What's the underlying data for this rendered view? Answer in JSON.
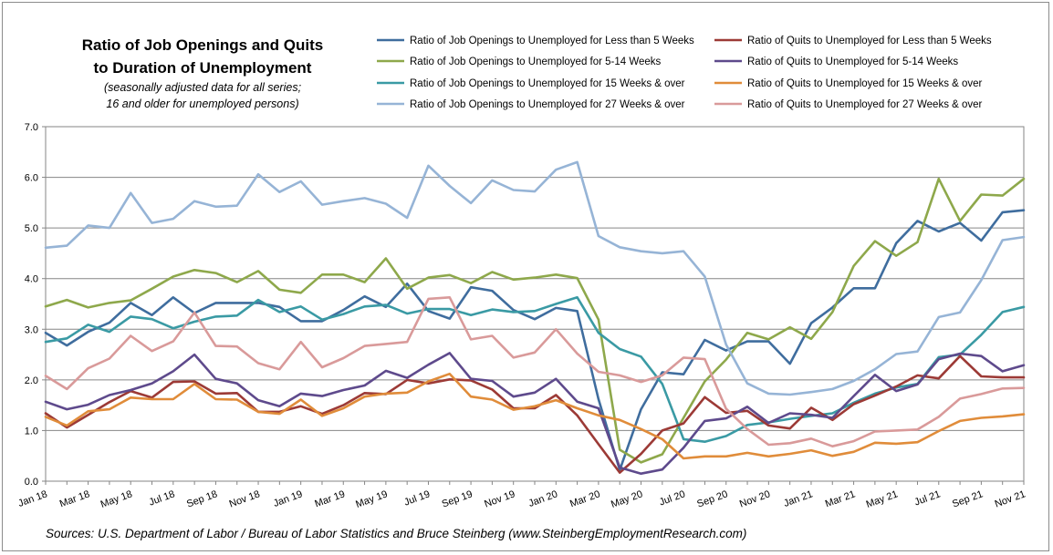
{
  "chart_data": {
    "type": "line",
    "title_lines": [
      "Ratio of Job Openings and Quits",
      "to Duration of Unemployment"
    ],
    "subtitle_lines": [
      "(seasonally adjusted  data for all series;",
      "16 and older for unemployed persons)"
    ],
    "source": "Sources: U.S. Department of Labor / Bureau of Labor Statistics and Bruce Steinberg (www.SteinbergEmploymentResearch.com)",
    "xlabel": "",
    "ylabel": "",
    "ylim": [
      0,
      7
    ],
    "y_ticks": [
      "0.0",
      "1.0",
      "2.0",
      "3.0",
      "4.0",
      "5.0",
      "6.0",
      "7.0"
    ],
    "grid": "horizontal",
    "legend_position": "top-right",
    "x": [
      "Jan 18",
      "Feb 18",
      "Mar 18",
      "Apr 18",
      "May 18",
      "Jun 18",
      "Jul 18",
      "Aug 18",
      "Sep 18",
      "Oct 18",
      "Nov 18",
      "Dec 18",
      "Jan 19",
      "Feb 19",
      "Mar 19",
      "Apr 19",
      "May 19",
      "Jun 19",
      "Jul 19",
      "Aug 19",
      "Sep 19",
      "Oct 19",
      "Nov 19",
      "Dec 19",
      "Jan 20",
      "Feb 20",
      "Mar 20",
      "Apr 20",
      "May 20",
      "Jun 20",
      "Jul 20",
      "Aug 20",
      "Sep 20",
      "Oct 20",
      "Nov 20",
      "Dec 20",
      "Jan 21",
      "Feb 21",
      "Mar 21",
      "Apr 21",
      "May 21",
      "Jun 21",
      "Jul 21",
      "Aug 21",
      "Sep 21",
      "Oct 21",
      "Nov 21"
    ],
    "x_tick_labels": [
      "Jan 18",
      "Mar 18",
      "May 18",
      "Jul 18",
      "Sep 18",
      "Nov 18",
      "Jan 19",
      "Mar 19",
      "May 19",
      "Jul 19",
      "Sep 19",
      "Nov 19",
      "Jan 20",
      "Mar 20",
      "May 20",
      "Jul 20",
      "Sep 20",
      "Nov 20",
      "Jan 21",
      "Mar 21",
      "May 21",
      "Jul 21",
      "Sep 21",
      "Nov 21"
    ],
    "series": [
      {
        "name": "Ratio of Job Openings to Unemployed for Less than 5 Weeks",
        "color": "#3f6d9e",
        "values": [
          2.93,
          2.68,
          2.95,
          3.13,
          3.52,
          3.28,
          3.63,
          3.32,
          3.52,
          3.52,
          3.52,
          3.44,
          3.16,
          3.16,
          3.38,
          3.65,
          3.44,
          3.9,
          3.36,
          3.21,
          3.83,
          3.76,
          3.38,
          3.2,
          3.42,
          3.36,
          1.62,
          0.22,
          1.42,
          2.15,
          2.11,
          2.79,
          2.58,
          2.76,
          2.76,
          2.32,
          3.12,
          3.43,
          3.81,
          3.81,
          4.7,
          5.14,
          4.93,
          5.1,
          4.75,
          5.31,
          5.35
        ]
      },
      {
        "name": "Ratio of Job Openings to Unemployed for 5-14 Weeks",
        "color": "#8ea84b",
        "values": [
          3.45,
          3.58,
          3.43,
          3.52,
          3.57,
          3.8,
          4.04,
          4.17,
          4.11,
          3.93,
          4.15,
          3.78,
          3.72,
          4.08,
          4.08,
          3.93,
          4.4,
          3.8,
          4.02,
          4.07,
          3.91,
          4.13,
          3.98,
          4.02,
          4.08,
          4.01,
          3.19,
          0.62,
          0.37,
          0.53,
          1.25,
          1.97,
          2.4,
          2.93,
          2.8,
          3.04,
          2.81,
          3.34,
          4.25,
          4.74,
          4.45,
          4.72,
          5.97,
          5.14,
          5.66,
          5.64,
          5.97
        ]
      },
      {
        "name": "Ratio of Job Openings to Unemployed for 15 Weeks & over",
        "color": "#3a9aa4",
        "values": [
          2.75,
          2.82,
          3.09,
          2.95,
          3.25,
          3.2,
          3.02,
          3.15,
          3.25,
          3.27,
          3.58,
          3.34,
          3.45,
          3.19,
          3.3,
          3.45,
          3.48,
          3.31,
          3.4,
          3.4,
          3.28,
          3.39,
          3.34,
          3.36,
          3.5,
          3.63,
          2.93,
          2.61,
          2.46,
          1.92,
          0.83,
          0.78,
          0.89,
          1.11,
          1.16,
          1.23,
          1.29,
          1.34,
          1.55,
          1.73,
          1.85,
          1.92,
          2.45,
          2.5,
          2.89,
          3.34,
          3.44
        ]
      },
      {
        "name": "Ratio of Job Openings to Unemployed for 27 Weeks & over",
        "color": "#96b4d6",
        "values": [
          4.61,
          4.65,
          5.05,
          5.0,
          5.69,
          5.1,
          5.18,
          5.53,
          5.42,
          5.44,
          6.06,
          5.71,
          5.92,
          5.46,
          5.53,
          5.59,
          5.48,
          5.2,
          6.23,
          5.83,
          5.49,
          5.94,
          5.75,
          5.72,
          6.15,
          6.3,
          4.84,
          4.62,
          4.54,
          4.5,
          4.54,
          4.04,
          2.7,
          1.93,
          1.73,
          1.71,
          1.76,
          1.82,
          1.98,
          2.21,
          2.51,
          2.56,
          3.24,
          3.33,
          3.97,
          4.76,
          4.82
        ]
      },
      {
        "name": "Ratio of Quits to Unemployed for Less than 5 Weeks",
        "color": "#9c3a36",
        "values": [
          1.34,
          1.06,
          1.31,
          1.56,
          1.78,
          1.65,
          1.96,
          1.97,
          1.73,
          1.74,
          1.37,
          1.37,
          1.48,
          1.33,
          1.5,
          1.74,
          1.72,
          2.0,
          1.93,
          2.01,
          1.99,
          1.81,
          1.44,
          1.44,
          1.7,
          1.3,
          0.73,
          0.17,
          0.54,
          1.0,
          1.14,
          1.66,
          1.35,
          1.39,
          1.1,
          1.04,
          1.45,
          1.21,
          1.52,
          1.69,
          1.87,
          2.09,
          2.03,
          2.47,
          2.07,
          2.05,
          2.05
        ]
      },
      {
        "name": "Ratio of Quits to Unemployed for 5-14 Weeks",
        "color": "#5e4a8c",
        "values": [
          1.57,
          1.42,
          1.51,
          1.7,
          1.8,
          1.93,
          2.17,
          2.5,
          2.02,
          1.93,
          1.6,
          1.48,
          1.73,
          1.68,
          1.8,
          1.89,
          2.18,
          2.04,
          2.3,
          2.53,
          2.02,
          1.98,
          1.67,
          1.75,
          2.02,
          1.57,
          1.44,
          0.27,
          0.15,
          0.23,
          0.66,
          1.19,
          1.24,
          1.47,
          1.15,
          1.34,
          1.31,
          1.25,
          1.68,
          2.1,
          1.78,
          1.91,
          2.41,
          2.52,
          2.47,
          2.17,
          2.29
        ]
      },
      {
        "name": "Ratio of Quits to Unemployed for 15 Weeks & over",
        "color": "#e08c3a",
        "values": [
          1.27,
          1.1,
          1.38,
          1.42,
          1.65,
          1.62,
          1.62,
          1.92,
          1.62,
          1.61,
          1.37,
          1.33,
          1.61,
          1.29,
          1.44,
          1.67,
          1.73,
          1.75,
          1.97,
          2.12,
          1.67,
          1.61,
          1.41,
          1.48,
          1.6,
          1.44,
          1.3,
          1.21,
          1.03,
          0.83,
          0.45,
          0.49,
          0.49,
          0.56,
          0.49,
          0.54,
          0.61,
          0.5,
          0.58,
          0.76,
          0.74,
          0.77,
          0.99,
          1.19,
          1.25,
          1.28,
          1.32
        ]
      },
      {
        "name": "Ratio of Quits to Unemployed for 27 Weeks & over",
        "color": "#d99a9a",
        "values": [
          2.08,
          1.82,
          2.23,
          2.42,
          2.87,
          2.57,
          2.76,
          3.33,
          2.67,
          2.66,
          2.33,
          2.21,
          2.75,
          2.25,
          2.43,
          2.67,
          2.71,
          2.75,
          3.6,
          3.63,
          2.8,
          2.87,
          2.44,
          2.54,
          3.0,
          2.52,
          2.16,
          2.09,
          1.96,
          2.09,
          2.44,
          2.41,
          1.43,
          1.03,
          0.72,
          0.75,
          0.84,
          0.69,
          0.79,
          0.98,
          1.0,
          1.02,
          1.27,
          1.63,
          1.72,
          1.83,
          1.84
        ]
      }
    ]
  }
}
